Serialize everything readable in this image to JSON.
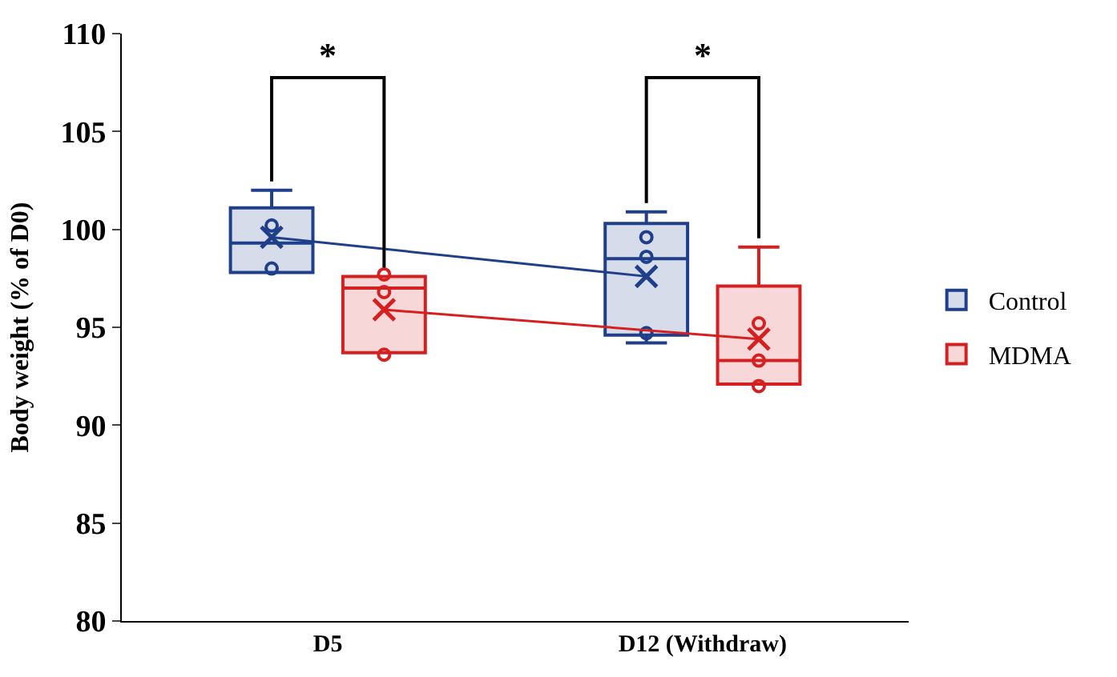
{
  "chart_data": {
    "type": "box",
    "ylabel": "Body weight (% of D0)",
    "categories": [
      "D5",
      "D12 (Withdraw)"
    ],
    "ylim": [
      80,
      110
    ],
    "yticks": [
      80,
      85,
      90,
      95,
      100,
      105,
      110
    ],
    "legend": "right",
    "series": [
      {
        "name": "Control",
        "color": "#1f3f8a",
        "boxes": [
          {
            "low": 97.8,
            "q1": 97.8,
            "median": 99.3,
            "q3": 101.1,
            "high": 102,
            "mean": 99.6,
            "outliers": [
              100.2,
              98
            ]
          },
          {
            "low": 94.2,
            "q1": 94.6,
            "median": 98.5,
            "q3": 100.3,
            "high": 100.9,
            "mean": 97.6,
            "outliers": [
              99.6,
              98.6,
              94.7
            ]
          }
        ]
      },
      {
        "name": "MDMA",
        "color": "#d42020",
        "boxes": [
          {
            "low": 93.7,
            "q1": 93.7,
            "median": 97.0,
            "q3": 97.6,
            "high": 97.6,
            "mean": 95.9,
            "outliers": [
              97.7,
              96.8,
              93.6
            ]
          },
          {
            "low": 92.1,
            "q1": 92.1,
            "median": 93.3,
            "q3": 97.1,
            "high": 99.1,
            "mean": 94.4,
            "outliers": [
              95.2,
              93.3,
              92.0
            ]
          }
        ]
      },
      {
        "type": "line",
        "color": "#1f3f8a",
        "values": [
          99.6,
          97.6
        ]
      },
      {
        "type": "line",
        "color": "#d42020",
        "values": [
          95.9,
          94.4
        ]
      }
    ],
    "annotations": [
      "*",
      "*"
    ]
  }
}
